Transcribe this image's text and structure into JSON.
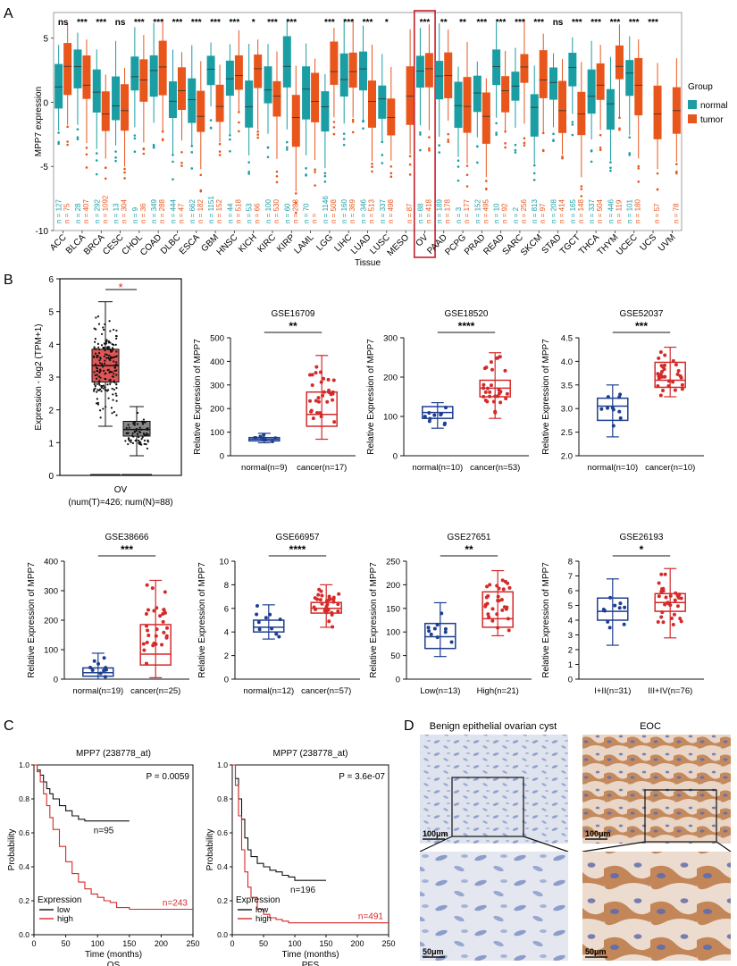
{
  "panel_labels": [
    "A",
    "B",
    "C",
    "D"
  ],
  "colors": {
    "normal": "#1a9ea3",
    "tumor": "#e8561c",
    "box_normal": "#1e3f8f",
    "box_cancer": "#d42a2a",
    "km_low": "#111111",
    "km_high": "#d42a2a",
    "highlight": "#c8202a"
  },
  "chart_data": [
    {
      "id": "panelA",
      "type": "boxplot",
      "title": "",
      "xlabel": "Tissue",
      "ylabel": "MPP7 expression",
      "ylim": [
        -10,
        7
      ],
      "yticks": [
        -10,
        -5,
        0,
        5
      ],
      "legend": {
        "title": "Group",
        "entries": [
          "normal",
          "tumor"
        ],
        "position": "right"
      },
      "categories": [
        "ACC",
        "BLCA",
        "BRCA",
        "CESC",
        "CHOL",
        "COAD",
        "DLBC",
        "ESCA",
        "GBM",
        "HNSC",
        "KICH",
        "KIRC",
        "KIRP",
        "LAML",
        "LGG",
        "LIHC",
        "LUAD",
        "LUSC",
        "MESO",
        "OV",
        "PAAD",
        "PCPG",
        "PRAD",
        "READ",
        "SARC",
        "SKCM",
        "STAD",
        "TGCT",
        "THCA",
        "THYM",
        "UCEC",
        "UCS",
        "UVM"
      ],
      "significance": [
        "ns",
        "***",
        "***",
        "ns",
        "***",
        "***",
        "***",
        "***",
        "***",
        "***",
        "*",
        "***",
        "***",
        "",
        "***",
        "***",
        "***",
        "*",
        "",
        "***",
        "**",
        "**",
        "***",
        "***",
        "***",
        "***",
        "ns",
        "***",
        "***",
        "***",
        "***",
        "***",
        ""
      ],
      "n_normal": [
        "127",
        "28",
        "292",
        "13",
        "9",
        "349",
        "444",
        "662",
        "1151",
        "44",
        "53",
        "100",
        "60",
        "70",
        "1146",
        "160",
        "346",
        "337",
        "",
        "88",
        "189",
        "3",
        "152",
        "10",
        "2",
        "813",
        "208",
        "165",
        "337",
        "446",
        "101",
        "",
        ""
      ],
      "n_tumor": [
        "75",
        "407",
        "1092",
        "304",
        "36",
        "288",
        "47",
        "182",
        "152",
        "518",
        "66",
        "530",
        "288",
        "",
        "508",
        "369",
        "513",
        "498",
        "87",
        "418",
        "178",
        "177",
        "495",
        "92",
        "256",
        "97",
        "414",
        "148",
        "504",
        "119",
        "180",
        "57",
        "78"
      ],
      "highlighted": "OV"
    },
    {
      "id": "panelB_gepia",
      "type": "boxplot",
      "ylabel": "Expression - log2 (TPM+1)",
      "ylim": [
        0,
        6
      ],
      "yticks": [
        0,
        1,
        2,
        3,
        4,
        5,
        6
      ],
      "significance": "*",
      "xlabel": "OV",
      "note": "(num(T)=426; num(N)=88)",
      "boxes": [
        {
          "group": "tumor",
          "median": 3.35,
          "q1": 2.85,
          "q3": 3.85,
          "whisker_low": 1.5,
          "whisker_high": 5.3
        },
        {
          "group": "normal",
          "median": 1.4,
          "q1": 1.2,
          "q3": 1.65,
          "whisker_low": 0.6,
          "whisker_high": 2.1
        }
      ]
    },
    {
      "id": "GSE16709",
      "type": "boxplot",
      "title": "GSE16709",
      "ylabel": "Relative Expression of MPP7",
      "ylim": [
        0,
        500
      ],
      "yticks": [
        0,
        100,
        200,
        300,
        400,
        500
      ],
      "significance": "**",
      "groups": [
        {
          "label": "normal(n=9)",
          "median": 70,
          "q1": 63,
          "q3": 77,
          "low": 55,
          "high": 95
        },
        {
          "label": "cancer(n=17)",
          "median": 175,
          "q1": 125,
          "q3": 270,
          "low": 70,
          "high": 425
        }
      ]
    },
    {
      "id": "GSE18520",
      "type": "boxplot",
      "title": "GSE18520",
      "ylabel": "Relative Expression of MPP7",
      "ylim": [
        0,
        300
      ],
      "yticks": [
        0,
        100,
        200,
        300
      ],
      "significance": "****",
      "groups": [
        {
          "label": "normal(n=10)",
          "median": 110,
          "q1": 95,
          "q3": 125,
          "low": 70,
          "high": 135
        },
        {
          "label": "cancer(n=53)",
          "median": 172,
          "q1": 150,
          "q3": 192,
          "low": 95,
          "high": 262
        }
      ]
    },
    {
      "id": "GSE52037",
      "type": "boxplot",
      "title": "GSE52037",
      "ylabel": "Relative Expression of MPP7",
      "ylim": [
        2.0,
        4.5
      ],
      "yticks": [
        2.0,
        2.5,
        3.0,
        3.5,
        4.0,
        4.5
      ],
      "significance": "***",
      "groups": [
        {
          "label": "normal(n=10)",
          "median": 3.05,
          "q1": 2.75,
          "q3": 3.22,
          "low": 2.4,
          "high": 3.5
        },
        {
          "label": "cancer(n=10)",
          "median": 3.6,
          "q1": 3.45,
          "q3": 3.98,
          "low": 3.25,
          "high": 4.3
        }
      ]
    },
    {
      "id": "GSE38666",
      "type": "boxplot",
      "title": "GSE38666",
      "ylabel": "Relative Expression of MPP7",
      "ylim": [
        0,
        400
      ],
      "yticks": [
        0,
        100,
        200,
        300,
        400
      ],
      "significance": "***",
      "groups": [
        {
          "label": "normal(n=19)",
          "median": 22,
          "q1": 10,
          "q3": 38,
          "low": 0,
          "high": 88
        },
        {
          "label": "cancer(n=25)",
          "median": 85,
          "q1": 48,
          "q3": 185,
          "low": 5,
          "high": 335
        }
      ]
    },
    {
      "id": "GSE66957",
      "type": "boxplot",
      "title": "GSE66957",
      "ylabel": "Relative Expression of MPP7",
      "ylim": [
        0,
        10
      ],
      "yticks": [
        0,
        2,
        4,
        6,
        8,
        10
      ],
      "significance": "****",
      "groups": [
        {
          "label": "normal(n=12)",
          "median": 4.4,
          "q1": 4.0,
          "q3": 5.0,
          "low": 3.4,
          "high": 6.3
        },
        {
          "label": "cancer(n=57)",
          "median": 6.0,
          "q1": 5.6,
          "q3": 6.5,
          "low": 4.4,
          "high": 8.0
        }
      ]
    },
    {
      "id": "GSE27651",
      "type": "boxplot",
      "title": "GSE27651",
      "ylabel": "Relative Expression of MPP7",
      "ylim": [
        0,
        250
      ],
      "yticks": [
        0,
        50,
        100,
        150,
        200,
        250
      ],
      "significance": "**",
      "groups": [
        {
          "label": "Low(n=13)",
          "median": 90,
          "q1": 65,
          "q3": 118,
          "low": 48,
          "high": 162
        },
        {
          "label": "High(n=21)",
          "median": 128,
          "q1": 110,
          "q3": 185,
          "low": 92,
          "high": 230
        }
      ]
    },
    {
      "id": "GSE26193",
      "type": "boxplot",
      "title": "GSE26193",
      "ylabel": "Relative Expression of MPP7",
      "ylim": [
        0,
        8
      ],
      "yticks": [
        0,
        1,
        2,
        3,
        4,
        5,
        6,
        7,
        8
      ],
      "significance": "*",
      "groups": [
        {
          "label": "I+II(n=31)",
          "median": 4.6,
          "q1": 4.0,
          "q3": 5.5,
          "low": 2.3,
          "high": 6.8
        },
        {
          "label": "III+IV(n=76)",
          "median": 5.2,
          "q1": 4.6,
          "q3": 5.8,
          "low": 2.8,
          "high": 7.5
        }
      ]
    },
    {
      "id": "KM_OS",
      "type": "line",
      "title": "MPP7 (238778_at)",
      "xlabel": "Time (months)",
      "ylabel": "Probability",
      "subtitle": "OS",
      "xlim": [
        0,
        250
      ],
      "xticks": [
        0,
        50,
        100,
        150,
        200,
        250
      ],
      "ylim": [
        0,
        1
      ],
      "yticks": [
        "0.0",
        "0.2",
        "0.4",
        "0.6",
        "0.8",
        "1.0"
      ],
      "pvalue": "P = 0.0059",
      "legend": {
        "title": "Expression",
        "entries": [
          "low",
          "high"
        ]
      },
      "n_low": "n=95",
      "n_high": "n=243",
      "series": [
        {
          "name": "low",
          "x": [
            0,
            5,
            10,
            15,
            20,
            25,
            30,
            40,
            50,
            60,
            70,
            80,
            100,
            150
          ],
          "y": [
            1,
            0.97,
            0.94,
            0.9,
            0.86,
            0.83,
            0.8,
            0.76,
            0.73,
            0.7,
            0.68,
            0.67,
            0.67,
            0.67
          ]
        },
        {
          "name": "high",
          "x": [
            0,
            5,
            10,
            15,
            20,
            25,
            30,
            40,
            50,
            60,
            70,
            80,
            90,
            100,
            110,
            120,
            130,
            150,
            250
          ],
          "y": [
            1,
            0.96,
            0.9,
            0.83,
            0.76,
            0.69,
            0.62,
            0.52,
            0.43,
            0.36,
            0.31,
            0.27,
            0.24,
            0.22,
            0.2,
            0.19,
            0.16,
            0.15,
            0.15
          ]
        }
      ]
    },
    {
      "id": "KM_PFS",
      "type": "line",
      "title": "MPP7 (238778_at)",
      "xlabel": "Time (months)",
      "ylabel": "Probability",
      "subtitle": "PFS",
      "xlim": [
        0,
        250
      ],
      "xticks": [
        0,
        50,
        100,
        150,
        200,
        250
      ],
      "ylim": [
        0,
        1
      ],
      "yticks": [
        "0.0",
        "0.2",
        "0.4",
        "0.6",
        "0.8",
        "1.0"
      ],
      "pvalue": "P = 3.6e-07",
      "legend": {
        "title": "Expression",
        "entries": [
          "low",
          "high"
        ]
      },
      "n_low": "n=196",
      "n_high": "n=491",
      "series": [
        {
          "name": "low",
          "x": [
            0,
            5,
            10,
            15,
            20,
            25,
            30,
            40,
            50,
            60,
            70,
            80,
            90,
            100,
            150
          ],
          "y": [
            1,
            0.92,
            0.8,
            0.68,
            0.57,
            0.5,
            0.46,
            0.42,
            0.4,
            0.38,
            0.37,
            0.35,
            0.34,
            0.32,
            0.32
          ]
        },
        {
          "name": "high",
          "x": [
            0,
            5,
            10,
            15,
            20,
            25,
            30,
            40,
            50,
            60,
            70,
            80,
            90,
            100,
            150,
            250
          ],
          "y": [
            1,
            0.88,
            0.7,
            0.5,
            0.37,
            0.28,
            0.22,
            0.15,
            0.12,
            0.1,
            0.09,
            0.08,
            0.07,
            0.07,
            0.07,
            0.07
          ]
        }
      ]
    }
  ],
  "panelD": {
    "benign_title": "Benign epithelial ovarian cyst",
    "eoc_title": "EOC",
    "scale_100": "100μm",
    "scale_50": "50μm"
  }
}
